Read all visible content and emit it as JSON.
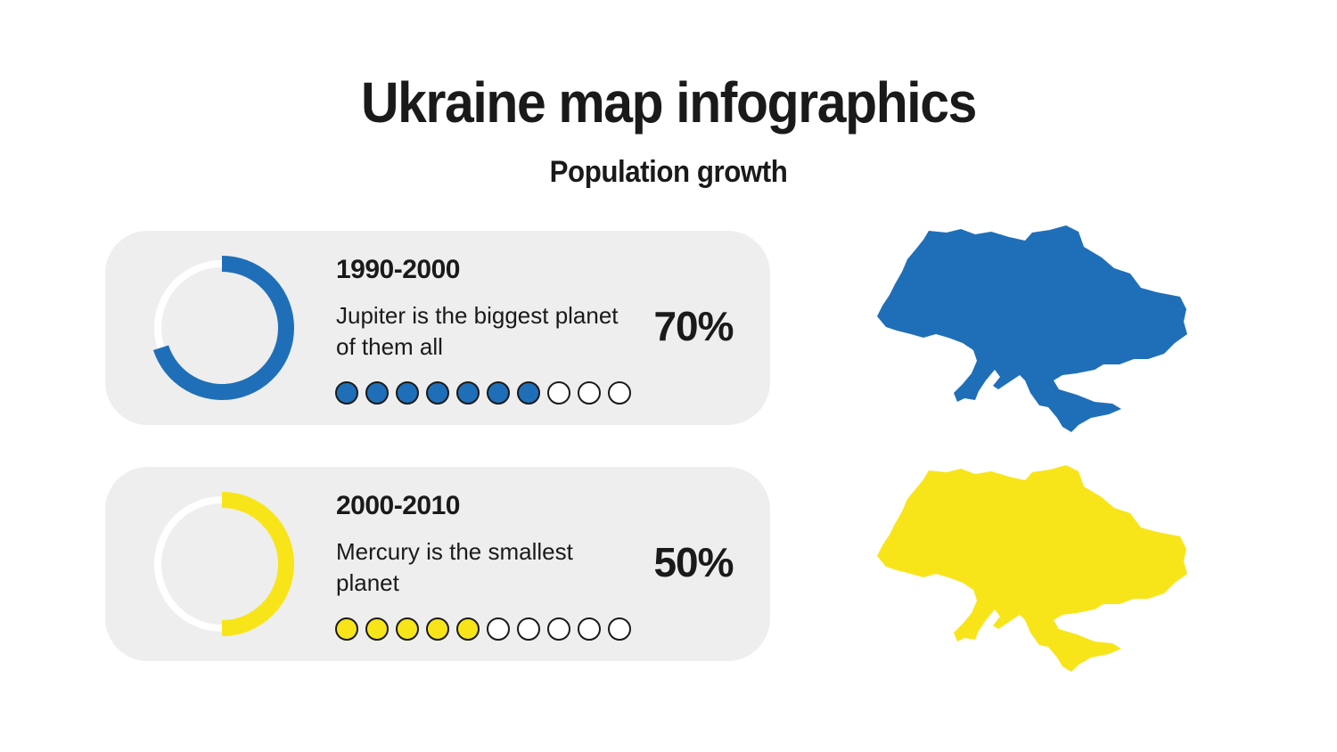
{
  "title": "Ukraine map infographics",
  "subtitle": "Population growth",
  "chart_data": {
    "type": "donut",
    "items": [
      {
        "period": "1990-2000",
        "description": "Jupiter is the biggest planet of them all",
        "value": 70,
        "value_label": "70%",
        "dots_total": 10,
        "dots_filled": 7,
        "color": "#1f6fb8"
      },
      {
        "period": "2000-2010",
        "description": "Mercury is the smallest planet",
        "value": 50,
        "value_label": "50%",
        "dots_total": 10,
        "dots_filled": 5,
        "color": "#f7e51a"
      }
    ]
  },
  "maps": [
    {
      "icon": "ukraine-map-icon",
      "color": "#1f6fb8"
    },
    {
      "icon": "ukraine-map-icon",
      "color": "#f7e51a"
    }
  ],
  "track_color": "#ffffff"
}
